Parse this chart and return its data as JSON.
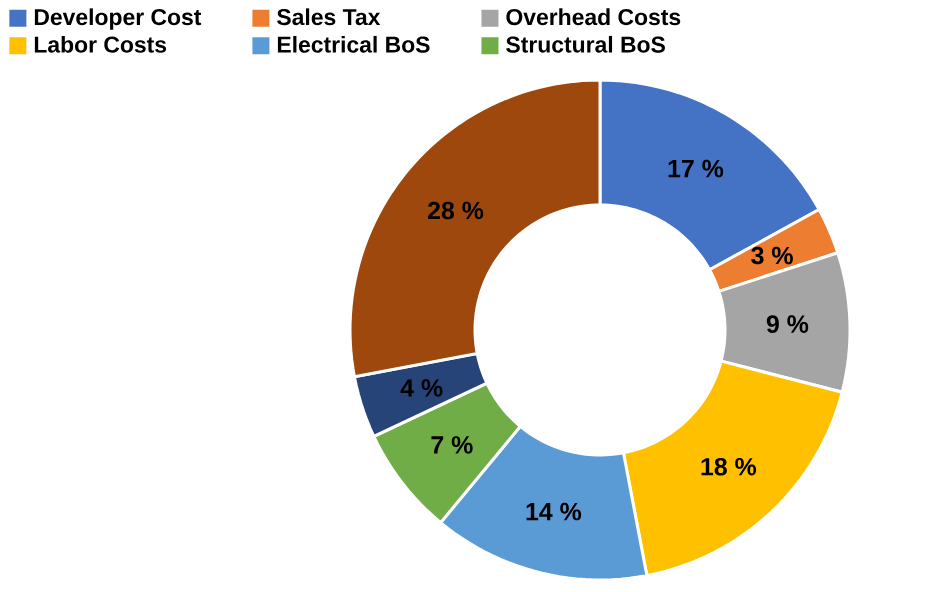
{
  "chart_data": {
    "type": "donut",
    "categories": [
      "Developer Cost",
      "Sales Tax",
      "Overhead Costs",
      "Labor Costs",
      "Electrical BoS",
      "Structural BoS",
      null,
      null
    ],
    "values": [
      17,
      3,
      9,
      18,
      14,
      7,
      4,
      28
    ],
    "colors": [
      "#4472c4",
      "#ed7d31",
      "#a5a5a5",
      "#ffc000",
      "#5b9bd5",
      "#70ad47",
      "#264478",
      "#9e480e"
    ],
    "value_labels": [
      "17 %",
      "3 %",
      "9 %",
      "18 %",
      "14 %",
      "7 %",
      "4 %",
      "28 %"
    ],
    "legend": "top"
  }
}
